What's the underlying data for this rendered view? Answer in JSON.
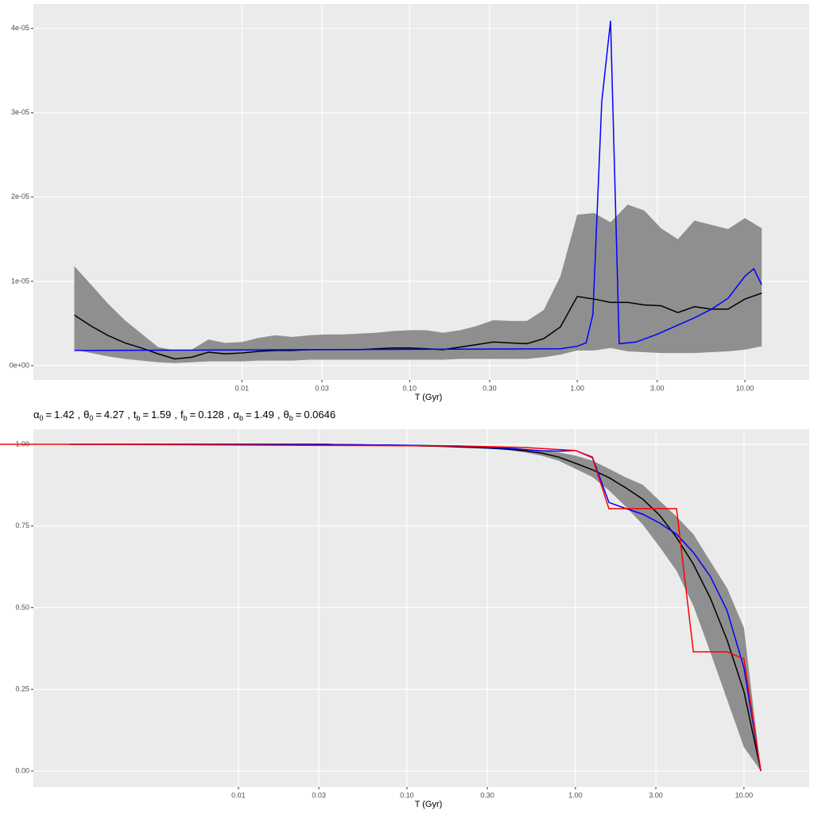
{
  "chart_data": [
    {
      "type": "line",
      "x_label": "T (Gyr)",
      "log_x": true,
      "grid": true,
      "xlim": [
        0.00057,
        24.2
      ],
      "ylim": [
        -1.7e-06,
        4.29e-05
      ],
      "xticks": [
        0.01,
        0.03,
        {
          "value": 0.1,
          "label": "0.10"
        },
        {
          "value": 0.3,
          "label": "0.30"
        },
        {
          "value": 1,
          "label": "1.00"
        },
        {
          "value": 3,
          "label": "3.00"
        },
        {
          "value": 10,
          "label": "10.00"
        }
      ],
      "yticks": [
        {
          "value": 0,
          "label": "0e+00"
        },
        {
          "value": 1e-05,
          "label": "1e-05"
        },
        {
          "value": 2e-05,
          "label": "2e-05"
        },
        {
          "value": 3e-05,
          "label": "3e-05"
        },
        {
          "value": 4e-05,
          "label": "4e-05"
        }
      ],
      "x": [
        0.001,
        0.00126,
        0.00158,
        0.002,
        0.00251,
        0.00316,
        0.00398,
        0.00501,
        0.00631,
        0.00794,
        0.01,
        0.0126,
        0.0158,
        0.02,
        0.0251,
        0.0316,
        0.0398,
        0.0501,
        0.0631,
        0.0794,
        0.1,
        0.126,
        0.158,
        0.2,
        0.251,
        0.316,
        0.398,
        0.501,
        0.631,
        0.794,
        1,
        1.26,
        1.58,
        2,
        2.51,
        3.16,
        3.98,
        5.01,
        6.31,
        7.94,
        10,
        12.6
      ],
      "band": {
        "color": "#8f8f8f",
        "upper": [
          1.18e-05,
          9.6e-06,
          7.4e-06,
          5.4e-06,
          3.8e-06,
          2.2e-06,
          1.8e-06,
          1.9e-06,
          3.1e-06,
          2.7e-06,
          2.8e-06,
          3.3e-06,
          3.6e-06,
          3.4e-06,
          3.6e-06,
          3.7e-06,
          3.7e-06,
          3.8e-06,
          3.9e-06,
          4.1e-06,
          4.2e-06,
          4.2e-06,
          3.9e-06,
          4.2e-06,
          4.7e-06,
          5.4e-06,
          5.3e-06,
          5.3e-06,
          6.6e-06,
          1.06e-05,
          1.79e-05,
          1.81e-05,
          1.7e-05,
          1.91e-05,
          1.84e-05,
          1.63e-05,
          1.5e-05,
          1.72e-05,
          1.67e-05,
          1.62e-05,
          1.75e-05,
          1.63e-05
        ],
        "lower": [
          1.9e-06,
          1.5e-06,
          1.1e-06,
          8e-07,
          6e-07,
          4e-07,
          3e-07,
          4e-07,
          5e-07,
          5e-07,
          5e-07,
          6e-07,
          6e-07,
          6e-07,
          7e-07,
          7e-07,
          7e-07,
          7e-07,
          7e-07,
          7e-07,
          7e-07,
          7e-07,
          7e-07,
          8e-07,
          8e-07,
          8e-07,
          8e-07,
          8e-07,
          1e-06,
          1.3e-06,
          1.8e-06,
          1.8e-06,
          2.1e-06,
          1.7e-06,
          1.6e-06,
          1.5e-06,
          1.5e-06,
          1.5e-06,
          1.6e-06,
          1.7e-06,
          1.9e-06,
          2.3e-06
        ]
      },
      "series": [
        {
          "color": "#000000",
          "values": [
            6e-06,
            4.7e-06,
            3.6e-06,
            2.7e-06,
            2.1e-06,
            1.4e-06,
            8e-07,
            1e-06,
            1.6e-06,
            1.4e-06,
            1.5e-06,
            1.7e-06,
            1.8e-06,
            1.8e-06,
            1.9e-06,
            1.9e-06,
            1.9e-06,
            1.9e-06,
            2e-06,
            2.1e-06,
            2.1e-06,
            2e-06,
            1.9e-06,
            2.2e-06,
            2.5e-06,
            2.8e-06,
            2.7e-06,
            2.6e-06,
            3.2e-06,
            4.6e-06,
            8.2e-06,
            7.9e-06,
            7.5e-06,
            7.5e-06,
            7.2e-06,
            7.1e-06,
            6.3e-06,
            7e-06,
            6.7e-06,
            6.7e-06,
            7.9e-06,
            8.6e-06
          ]
        },
        {
          "color": "#0000ff",
          "x": [
            0.001,
            0.795,
            1,
            1.13,
            1.24,
            1.4,
            1.58,
            1.78,
            2.24,
            2.98,
            5.03,
            6.32,
            7.95,
            10,
            11.3,
            12.6
          ],
          "values": [
            1.8e-06,
            2e-06,
            2.3e-06,
            2.7e-06,
            6.1e-06,
            3.13e-05,
            4.09e-05,
            2.6e-06,
            2.8e-06,
            3.7e-06,
            5.7e-06,
            6.7e-06,
            8e-06,
            1.06e-05,
            1.15e-05,
            9.6e-06
          ]
        }
      ]
    },
    {
      "type": "line",
      "x_label": "T (Gyr)",
      "log_x": true,
      "grid": true,
      "parameters": [
        {
          "symbol": "α",
          "subscript": "0",
          "value": 1.42
        },
        {
          "symbol": "θ",
          "subscript": "0",
          "value": 4.27
        },
        {
          "symbol": "t",
          "subscript": "b",
          "value": 1.59
        },
        {
          "symbol": "f",
          "subscript": "b",
          "value": 0.128
        },
        {
          "symbol": "α",
          "subscript": "b",
          "value": 1.49
        },
        {
          "symbol": "θ",
          "subscript": "b",
          "value": 0.0646
        }
      ],
      "equals": "=",
      "separator": ",",
      "xlim": [
        0.000607,
        24.4
      ],
      "ylim": [
        -0.0487,
        1.046
      ],
      "xticks": [
        0.01,
        0.03,
        {
          "value": 0.1,
          "label": "0.10"
        },
        {
          "value": 0.3,
          "label": "0.30"
        },
        {
          "value": 1,
          "label": "1.00"
        },
        {
          "value": 3,
          "label": "3.00"
        },
        {
          "value": 10,
          "label": "10.00"
        }
      ],
      "yticks": [
        {
          "value": 0,
          "label": "0.00"
        },
        0.25,
        {
          "value": 0.5,
          "label": "0.50"
        },
        0.75,
        {
          "value": 1,
          "label": "1.00"
        }
      ],
      "x": [
        0.001,
        0.00126,
        0.00158,
        0.002,
        0.00251,
        0.00316,
        0.00398,
        0.00501,
        0.00631,
        0.00794,
        0.01,
        0.0126,
        0.0158,
        0.02,
        0.0251,
        0.0316,
        0.0398,
        0.0501,
        0.0631,
        0.0794,
        0.1,
        0.126,
        0.158,
        0.2,
        0.251,
        0.316,
        0.398,
        0.501,
        0.631,
        0.794,
        1,
        1.26,
        1.58,
        2,
        2.51,
        3.16,
        3.98,
        5.01,
        6.31,
        7.94,
        10,
        12.6
      ],
      "band": {
        "color": "#8f8f8f",
        "upper": [
          1,
          1,
          1,
          1,
          1,
          1,
          1,
          1,
          1,
          1,
          1,
          1,
          1,
          1,
          1,
          1,
          1,
          1,
          1,
          1,
          0.999,
          0.999,
          0.998,
          0.997,
          0.995,
          0.993,
          0.99,
          0.985,
          0.98,
          0.975,
          0.965,
          0.95,
          0.925,
          0.898,
          0.876,
          0.827,
          0.779,
          0.725,
          0.642,
          0.56,
          0.438,
          0
        ],
        "lower": [
          1,
          1,
          1,
          1,
          1,
          1,
          1,
          1,
          1,
          1,
          1,
          1,
          0.999,
          0.999,
          0.999,
          0.998,
          0.998,
          0.997,
          0.996,
          0.995,
          0.994,
          0.993,
          0.992,
          0.991,
          0.989,
          0.986,
          0.982,
          0.975,
          0.965,
          0.95,
          0.925,
          0.9,
          0.859,
          0.808,
          0.754,
          0.686,
          0.613,
          0.506,
          0.365,
          0.219,
          0.073,
          0
        ]
      },
      "series": [
        {
          "color": "#000000",
          "values": [
            1,
            1,
            1,
            1,
            1,
            1,
            1,
            1,
            1,
            1,
            1,
            1,
            1,
            1,
            1,
            1,
            0.999,
            0.998,
            0.998,
            0.997,
            0.996,
            0.995,
            0.994,
            0.992,
            0.99,
            0.988,
            0.985,
            0.98,
            0.973,
            0.961,
            0.942,
            0.922,
            0.898,
            0.866,
            0.832,
            0.783,
            0.715,
            0.633,
            0.53,
            0.401,
            0.243,
            0
          ]
        },
        {
          "color": "#0000ff",
          "values": [
            1,
            1,
            1,
            1,
            1,
            1,
            1,
            1,
            1,
            1,
            1,
            1,
            1,
            1,
            1,
            1,
            0.999,
            0.999,
            0.998,
            0.998,
            0.997,
            0.996,
            0.995,
            0.994,
            0.992,
            0.99,
            0.988,
            0.984,
            0.98,
            0.979,
            0.981,
            0.961,
            0.822,
            0.803,
            0.786,
            0.759,
            0.725,
            0.669,
            0.596,
            0.491,
            0.316,
            0
          ]
        },
        {
          "color": "#ff0000",
          "x": [
            0.000385,
            0.001,
            0.0589,
            0.2,
            0.501,
            1,
            1.26,
            1.58,
            3.98,
            5.01,
            7.94,
            10,
            12.6
          ],
          "values": [
            1,
            1,
            0.996,
            0.995,
            0.99,
            0.981,
            0.959,
            0.803,
            0.803,
            0.365,
            0.365,
            0.343,
            0
          ]
        }
      ]
    }
  ]
}
